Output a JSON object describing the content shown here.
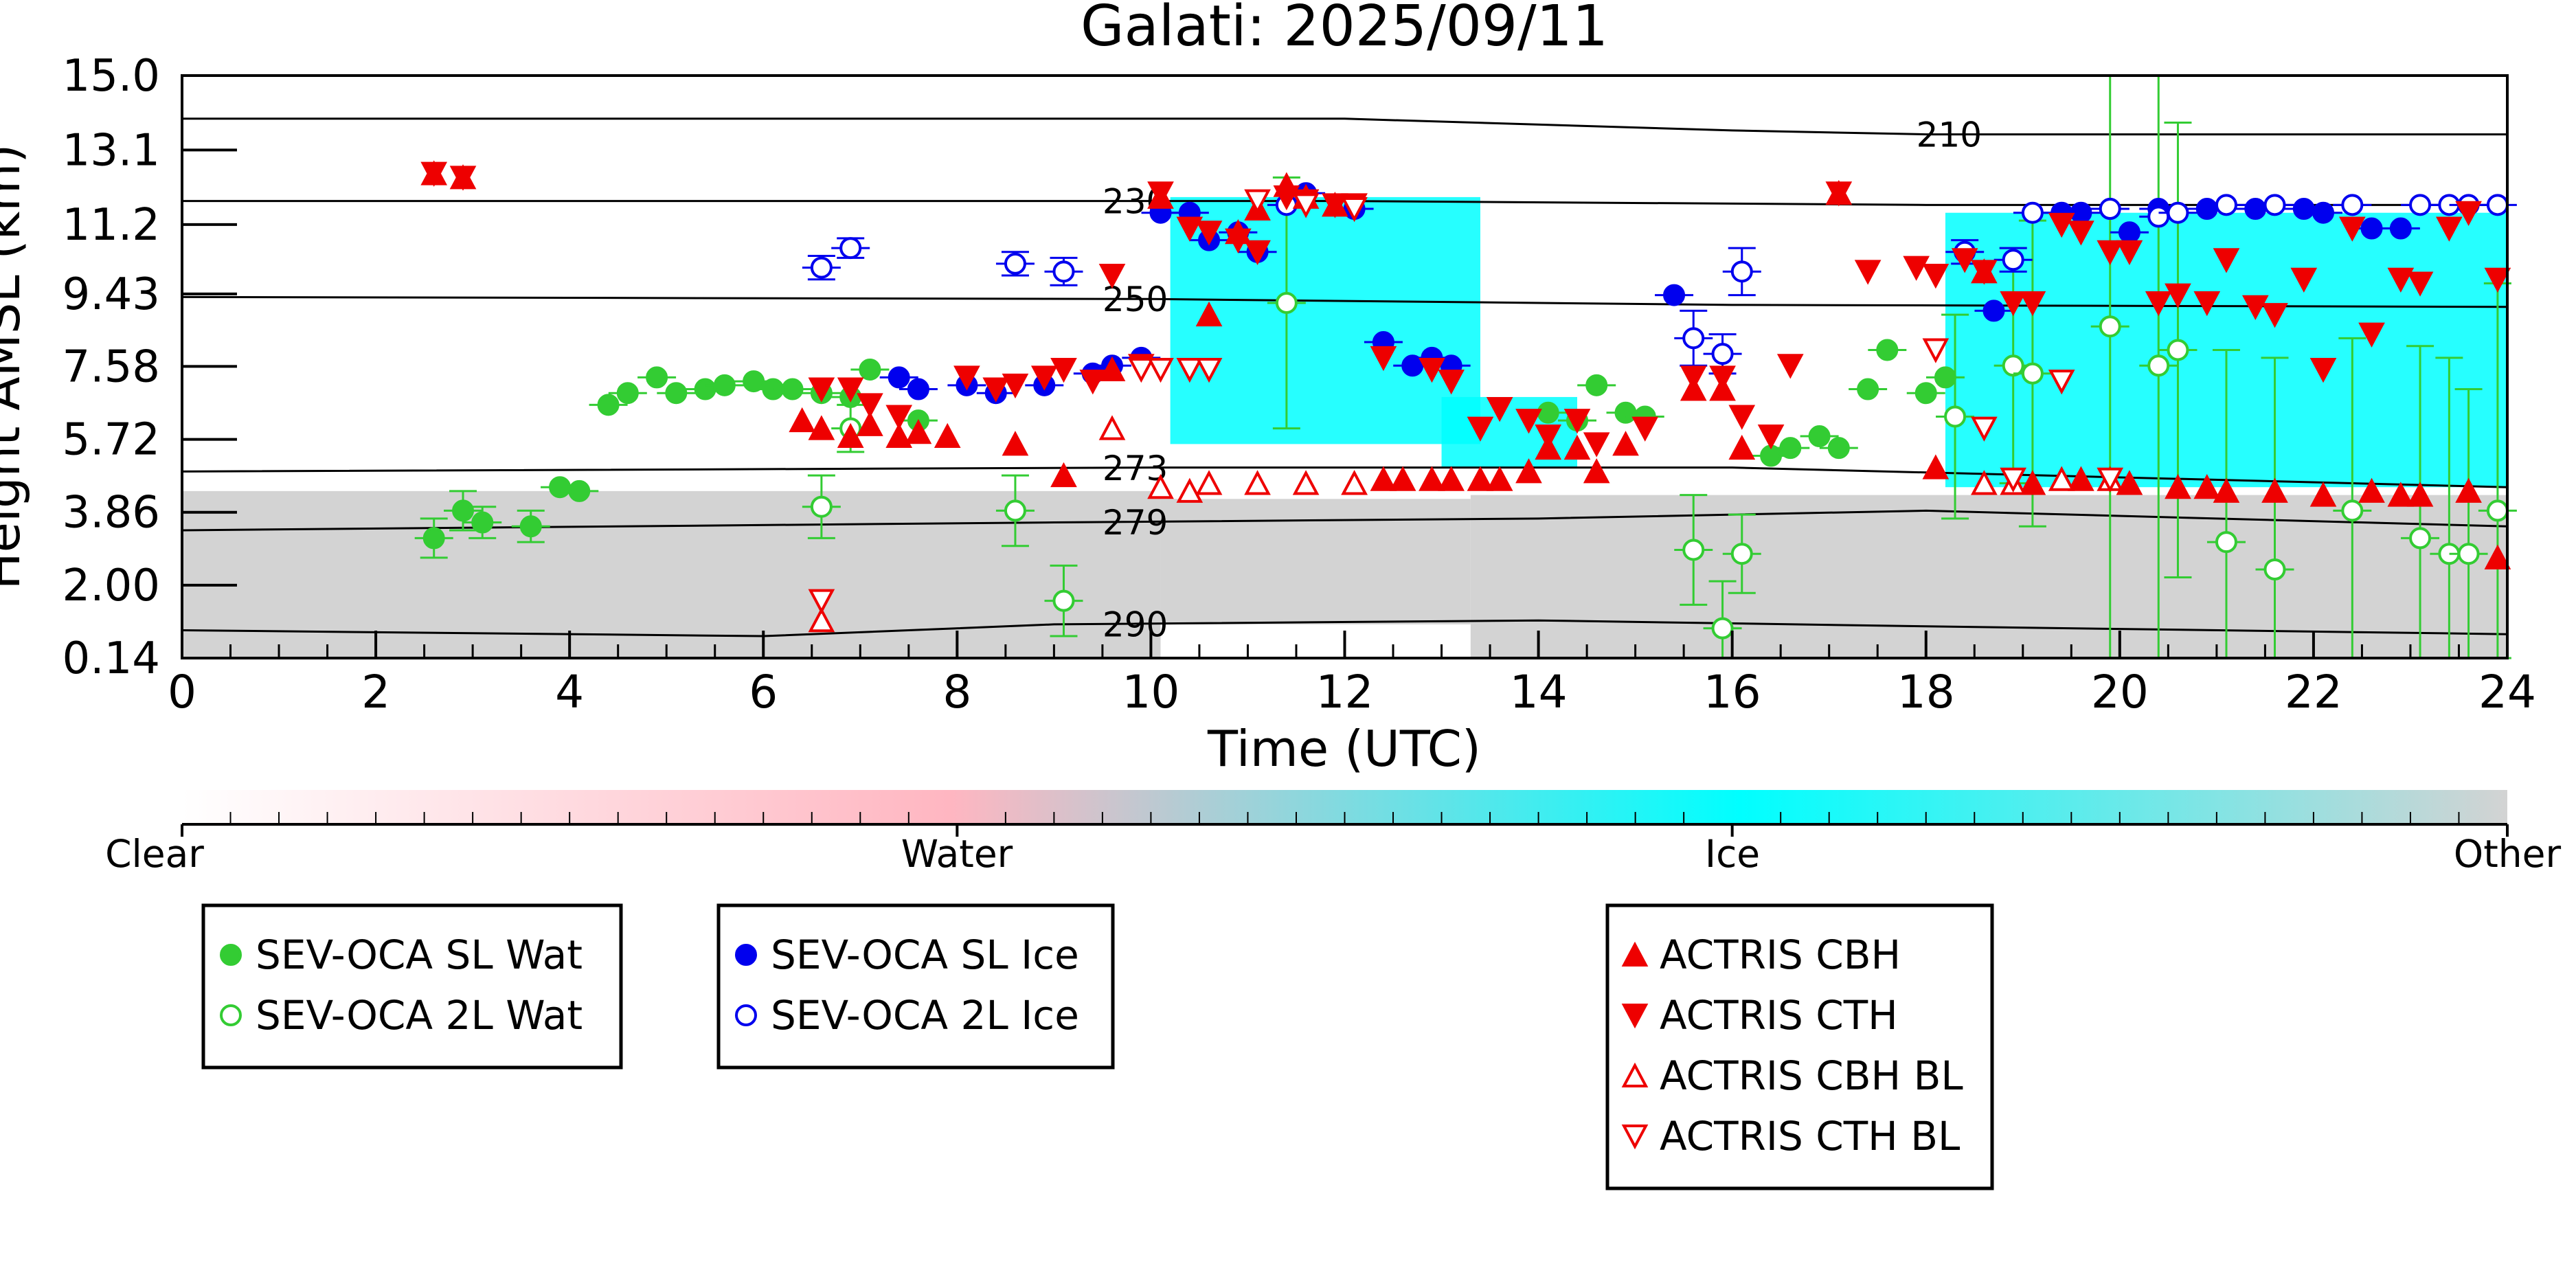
{
  "chart_data": {
    "type": "scatter",
    "title": "Galati: 2025/09/11",
    "xlabel": "Time (UTC)",
    "ylabel": "Height AMSL (km)",
    "xlim": [
      0,
      24
    ],
    "ylim": [
      0.14,
      15.0
    ],
    "x_ticks": [
      "0",
      "2",
      "4",
      "6",
      "8",
      "10",
      "12",
      "14",
      "16",
      "18",
      "20",
      "22",
      "24"
    ],
    "y_ticks": [
      "0.14",
      "2.00",
      "3.86",
      "5.72",
      "7.58",
      "9.43",
      "11.2",
      "13.1",
      "15.0"
    ],
    "grid": false,
    "background": {
      "description": "cloud phase curtain",
      "colorbar": {
        "labels": [
          "Clear",
          "Water",
          "Ice",
          "Other"
        ],
        "colors": [
          "#ffffff",
          "#ffb6c1",
          "#00ffff",
          "#d3d3d3"
        ]
      },
      "other_regions": [
        {
          "x": [
            0,
            10.1
          ],
          "y": [
            0.14,
            4.4
          ]
        },
        {
          "x": [
            10.1,
            13.3
          ],
          "y": [
            1.0,
            4.2
          ]
        },
        {
          "x": [
            13.3,
            24
          ],
          "y": [
            0.14,
            4.3
          ]
        }
      ],
      "ice_regions": [
        {
          "x": [
            10.2,
            13.4
          ],
          "y": [
            5.6,
            11.9
          ]
        },
        {
          "x": [
            18.2,
            24
          ],
          "y": [
            4.5,
            11.5
          ]
        },
        {
          "x": [
            13.0,
            14.4
          ],
          "y": [
            5.0,
            6.8
          ]
        }
      ]
    },
    "isotherms": [
      {
        "label": "210",
        "label_x": 17.9,
        "x": [
          0,
          12,
          16,
          18,
          24
        ],
        "y": [
          13.9,
          13.9,
          13.6,
          13.5,
          13.5
        ]
      },
      {
        "label": "230",
        "label_x": 9.5,
        "x": [
          0,
          12,
          18,
          24
        ],
        "y": [
          11.8,
          11.8,
          11.7,
          11.7
        ]
      },
      {
        "label": "250",
        "label_x": 9.5,
        "x": [
          0,
          10,
          16,
          24
        ],
        "y": [
          9.35,
          9.3,
          9.15,
          9.1
        ]
      },
      {
        "label": "273",
        "label_x": 9.5,
        "x": [
          0,
          10,
          16,
          24
        ],
        "y": [
          4.9,
          5.0,
          5.0,
          4.5
        ]
      },
      {
        "label": "279",
        "label_x": 9.5,
        "x": [
          0,
          9,
          14,
          18,
          24
        ],
        "y": [
          3.4,
          3.6,
          3.7,
          3.9,
          3.5
        ]
      },
      {
        "label": "290",
        "label_x": 9.5,
        "x": [
          0,
          6,
          9,
          14,
          18,
          24
        ],
        "y": [
          0.85,
          0.7,
          1.0,
          1.1,
          0.95,
          0.75
        ]
      }
    ],
    "series": [
      {
        "name": "SEV-OCA SL Wat",
        "marker": "circle",
        "filled": true,
        "color": "#33cc33",
        "x": [
          2.6,
          2.9,
          3.1,
          3.6,
          3.9,
          4.1,
          4.4,
          4.6,
          4.9,
          5.1,
          5.4,
          5.6,
          5.9,
          6.1,
          6.3,
          6.6,
          6.9,
          7.1,
          7.6,
          14.1,
          14.4,
          14.6,
          14.9,
          15.1,
          16.4,
          16.6,
          16.9,
          17.1,
          17.4,
          17.6,
          18.0,
          18.2
        ],
        "y": [
          3.2,
          3.9,
          3.6,
          3.5,
          4.5,
          4.4,
          6.6,
          6.9,
          7.3,
          6.9,
          7.0,
          7.1,
          7.2,
          7.0,
          7.0,
          6.9,
          6.8,
          7.5,
          6.2,
          6.4,
          6.2,
          7.1,
          6.4,
          6.3,
          5.3,
          5.5,
          5.8,
          5.5,
          7.0,
          8.0,
          6.9,
          7.3
        ],
        "err": [
          0.5,
          0.5,
          0.4,
          0.4,
          0,
          0,
          0,
          0,
          0,
          0,
          0,
          0,
          0,
          0,
          0,
          0,
          0,
          0,
          0,
          0,
          0,
          0,
          0,
          0,
          0,
          0,
          0,
          0,
          0,
          0,
          0,
          0
        ]
      },
      {
        "name": "SEV-OCA 2L Wat",
        "marker": "circle",
        "filled": false,
        "color": "#33cc33",
        "x": [
          6.6,
          6.9,
          8.6,
          9.1,
          11.4,
          15.6,
          15.9,
          16.1,
          18.3,
          18.9,
          19.1,
          19.9,
          20.4,
          20.6,
          21.1,
          21.6,
          22.4,
          23.1,
          23.4,
          23.6,
          23.9
        ],
        "y": [
          4.0,
          6.0,
          3.9,
          1.6,
          9.2,
          2.9,
          0.9,
          2.8,
          6.3,
          7.6,
          7.4,
          8.6,
          7.6,
          8.0,
          3.1,
          2.4,
          3.9,
          3.2,
          2.8,
          2.8,
          3.9
        ],
        "err": [
          0.8,
          0.6,
          0.9,
          0.9,
          3.2,
          1.4,
          1.2,
          1.0,
          2.6,
          3.0,
          3.9,
          8.9,
          8.7,
          5.8,
          4.9,
          5.4,
          4.4,
          4.9,
          5.0,
          4.2,
          5.8
        ]
      },
      {
        "name": "SEV-OCA SL Ice",
        "marker": "circle",
        "filled": true,
        "color": "#0000ee",
        "x": [
          7.4,
          7.6,
          8.1,
          8.4,
          8.9,
          9.4,
          9.6,
          9.9,
          10.1,
          10.4,
          10.6,
          10.9,
          11.1,
          11.6,
          12.1,
          12.4,
          12.7,
          12.9,
          13.1,
          15.4,
          18.7,
          19.4,
          19.6,
          19.9,
          20.1,
          20.4,
          20.9,
          21.4,
          21.9,
          22.1,
          22.6,
          22.9
        ],
        "y": [
          7.3,
          7.0,
          7.1,
          6.9,
          7.1,
          7.4,
          7.6,
          7.8,
          11.5,
          11.5,
          10.8,
          11.0,
          10.5,
          12.0,
          11.6,
          8.2,
          7.6,
          7.8,
          7.6,
          9.4,
          9.0,
          11.5,
          11.5,
          11.6,
          11.0,
          11.6,
          11.6,
          11.6,
          11.6,
          11.5,
          11.1,
          11.1
        ],
        "err": [
          0,
          0,
          0,
          0,
          0,
          0,
          0,
          0,
          0,
          0,
          0,
          0,
          0,
          0,
          0,
          0,
          0,
          0,
          0,
          0,
          0,
          0,
          0,
          0,
          0,
          0,
          0,
          0,
          0,
          0,
          0,
          0
        ]
      },
      {
        "name": "SEV-OCA 2L Ice",
        "marker": "circle",
        "filled": false,
        "color": "#0000ee",
        "x": [
          6.6,
          6.9,
          8.6,
          9.1,
          11.4,
          15.6,
          15.9,
          16.1,
          18.4,
          18.9,
          19.1,
          19.9,
          20.4,
          20.6,
          21.1,
          21.6,
          22.4,
          23.1,
          23.4,
          23.6,
          23.9
        ],
        "y": [
          10.1,
          10.6,
          10.2,
          10.0,
          11.7,
          8.3,
          7.9,
          10.0,
          10.5,
          10.3,
          11.5,
          11.6,
          11.4,
          11.5,
          11.7,
          11.7,
          11.7,
          11.7,
          11.7,
          11.7,
          11.7
        ],
        "err": [
          0.3,
          0.25,
          0.3,
          0.35,
          0,
          0.7,
          0.5,
          0.6,
          0.3,
          0.3,
          0,
          0,
          0,
          0,
          0,
          0,
          0,
          0,
          0,
          0,
          0
        ]
      },
      {
        "name": "ACTRIS CBH",
        "marker": "triangle-up",
        "filled": true,
        "color": "#ee0000",
        "x": [
          2.6,
          2.9,
          6.4,
          6.6,
          6.9,
          7.1,
          7.4,
          7.6,
          7.9,
          8.6,
          9.1,
          9.6,
          10.1,
          10.6,
          10.9,
          11.1,
          11.4,
          11.6,
          11.9,
          12.1,
          12.4,
          12.6,
          12.9,
          13.1,
          13.4,
          13.6,
          13.9,
          14.1,
          14.4,
          14.6,
          14.9,
          15.6,
          15.9,
          16.1,
          17.1,
          18.1,
          18.6,
          19.1,
          19.6,
          20.1,
          20.6,
          20.9,
          21.1,
          21.6,
          22.1,
          22.6,
          22.9,
          23.1,
          23.6,
          23.9
        ],
        "y": [
          12.5,
          12.4,
          6.2,
          6.0,
          5.8,
          6.1,
          5.8,
          5.9,
          5.8,
          5.6,
          4.8,
          7.5,
          11.9,
          8.9,
          11.0,
          11.6,
          12.2,
          11.9,
          11.7,
          4.6,
          4.7,
          4.7,
          4.7,
          4.7,
          4.7,
          4.7,
          4.9,
          5.5,
          5.5,
          4.9,
          5.6,
          7.0,
          7.0,
          5.5,
          12.0,
          5.0,
          10.0,
          4.6,
          4.7,
          4.6,
          4.5,
          4.5,
          4.4,
          4.4,
          4.3,
          4.4,
          4.3,
          4.3,
          4.4,
          2.7
        ],
        "err": []
      },
      {
        "name": "ACTRIS CTH",
        "marker": "triangle-down",
        "filled": true,
        "color": "#ee0000",
        "x": [
          2.6,
          2.9,
          6.6,
          6.9,
          7.1,
          7.4,
          8.1,
          8.4,
          8.6,
          8.9,
          9.1,
          9.4,
          9.6,
          9.9,
          10.1,
          10.4,
          10.6,
          10.9,
          11.1,
          11.4,
          11.6,
          11.9,
          12.1,
          12.4,
          12.9,
          13.1,
          13.4,
          13.6,
          13.9,
          14.1,
          14.4,
          14.6,
          15.1,
          15.6,
          15.9,
          16.1,
          16.4,
          16.6,
          17.1,
          17.4,
          17.9,
          18.1,
          18.4,
          18.6,
          18.9,
          19.1,
          19.4,
          19.6,
          19.9,
          20.1,
          20.4,
          20.6,
          20.9,
          21.1,
          21.4,
          21.6,
          21.9,
          22.1,
          22.4,
          22.6,
          22.9,
          23.1,
          23.4,
          23.6,
          23.9
        ],
        "y": [
          12.5,
          12.4,
          7.0,
          7.0,
          6.6,
          6.3,
          7.3,
          7.0,
          7.1,
          7.3,
          7.5,
          7.2,
          9.9,
          7.6,
          12.0,
          11.1,
          11.0,
          10.8,
          10.5,
          11.9,
          11.8,
          11.7,
          11.7,
          7.8,
          7.5,
          7.2,
          6.0,
          6.5,
          6.2,
          5.8,
          6.2,
          5.6,
          6.0,
          7.3,
          7.3,
          6.3,
          5.8,
          7.6,
          12.0,
          10.0,
          10.1,
          9.9,
          10.3,
          10.0,
          9.2,
          9.2,
          11.2,
          11.0,
          10.5,
          10.5,
          9.2,
          9.4,
          9.2,
          10.3,
          9.1,
          8.9,
          9.8,
          7.5,
          11.1,
          8.4,
          9.8,
          9.7,
          11.1,
          11.5,
          9.8
        ],
        "err": []
      },
      {
        "name": "ACTRIS CBH BL",
        "marker": "triangle-up",
        "filled": false,
        "color": "#ee0000",
        "x": [
          6.6,
          9.6,
          10.1,
          10.4,
          10.6,
          11.1,
          11.6,
          12.1,
          18.6,
          18.9,
          19.4,
          19.9
        ],
        "y": [
          1.1,
          6.0,
          4.5,
          4.4,
          4.6,
          4.6,
          4.6,
          4.6,
          4.6,
          4.6,
          4.7,
          4.7
        ],
        "err": []
      },
      {
        "name": "ACTRIS CTH BL",
        "marker": "triangle-down",
        "filled": false,
        "color": "#ee0000",
        "x": [
          6.6,
          9.9,
          10.1,
          10.4,
          10.6,
          11.1,
          11.6,
          12.1,
          18.1,
          18.6,
          18.9,
          19.4,
          19.9
        ],
        "y": [
          1.6,
          7.5,
          7.5,
          7.5,
          7.5,
          11.8,
          11.7,
          11.6,
          8.0,
          6.0,
          4.7,
          7.2,
          4.7
        ],
        "err": []
      }
    ],
    "legends": [
      {
        "items": [
          "SEV-OCA SL Wat",
          "SEV-OCA 2L Wat"
        ]
      },
      {
        "items": [
          "SEV-OCA SL Ice",
          "SEV-OCA 2L Ice"
        ]
      },
      {
        "items": [
          "ACTRIS CBH",
          "ACTRIS CTH",
          "ACTRIS CBH BL",
          "ACTRIS CTH BL"
        ]
      }
    ]
  }
}
